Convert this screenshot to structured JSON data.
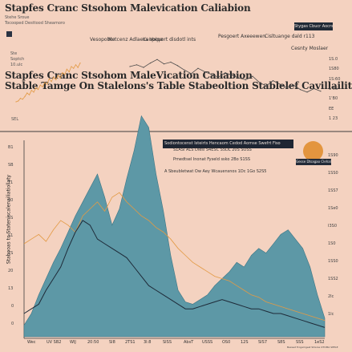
{
  "title": {
    "line1": "Stapfes Cranc Stsohom Malevication Caliabion",
    "line2": "Stapfes Cranc Stsohom MaleVication Caliabion",
    "line3": "Stable Tamge On Stalelons's Table Stabeoltion Stablelef Cavillaility"
  },
  "header": {
    "sub1": "Stehe Sroue",
    "sub2": "Tocooped Desttood Sheamoro",
    "legend_box": "Stygas Cbucr Aocrs",
    "top_labels": [
      "Vesopobte",
      "Netcenz Adlaecs Voiqe",
      "Kaupquort disdotl ints",
      "Pesgoert Axeeewen",
      "Cisltuange dald r113",
      "Cesnty Moslaer"
    ],
    "left_small": [
      "Ste",
      "Soptch",
      "10.ulc"
    ],
    "right_ticks": [
      "1S.0",
      "1S80",
      "1S:60",
      "1 5S",
      "1'B0",
      "EE",
      "1 23"
    ],
    "left_mark": "SEL"
  },
  "annotation": {
    "box": "Sodiontocenst Isteirts Hencaom Cedod Aomse Swefrt Fisoetf",
    "circle_label": "Gesse Dtsagao Clehaluseo",
    "rows": [
      "S1ASI  ALS  Diesl  S4ESC  S5DL 20S SOSS",
      "Pmedtsel  Inonat Fyseld  ssko  2Bo S1SS",
      "A  Sbeubletwat  Ow  Aey  Wcauensnos  1Dc  1Go S2S5"
    ]
  },
  "left_axis": {
    "label": "Stabooas to Stateniscalenailiatiollaty",
    "ticks": [
      "B1",
      "SB",
      "T1",
      "40",
      "5S",
      "S1",
      "1S",
      "20",
      "13",
      "0",
      "0"
    ]
  },
  "right_axis": {
    "ticks": [
      "1S90",
      "1SS0",
      "1SS7",
      "1Se0",
      "I3S0",
      "1S0",
      "1SS0",
      "1SS2",
      "2Ic",
      "1Ic"
    ]
  },
  "x_axis": {
    "ticks": [
      "Wec",
      "UV SB2",
      "WIJ",
      "20:50",
      "Sl8",
      "2TS1",
      "3l:8",
      "SISS",
      "AbsT",
      "USSS",
      "OS0",
      "12S",
      "SIS7",
      "S8S",
      "SSS",
      "1eS2"
    ]
  },
  "footnote": "Beswet Trogamgest Shlsnie OTOMA SEELE",
  "colors": {
    "background": "#f4d2c0",
    "area": "#5d98a6",
    "area_edge": "#3a7585",
    "dark_line": "#1e2a38",
    "orange_line": "#e39a44",
    "grey_line": "#4a4a4a"
  },
  "chart_data": [
    {
      "type": "line",
      "title": "",
      "xlabel": "",
      "ylabel": "",
      "ylim": [
        0,
        100
      ],
      "series": [
        {
          "values": [
            70,
            72,
            69,
            74,
            78,
            73,
            75,
            71,
            66,
            62,
            68,
            64,
            61,
            58,
            63,
            60,
            57,
            55,
            59,
            52,
            48,
            54,
            50,
            46,
            49,
            44,
            41,
            45,
            42
          ]
        },
        {
          "values": [
            30,
            31,
            34,
            33,
            36,
            40,
            38,
            43,
            41,
            46,
            44,
            49,
            47,
            52,
            50,
            56,
            53,
            58,
            55,
            60,
            57,
            63,
            61,
            67,
            64,
            70,
            68,
            72,
            69,
            74
          ]
        }
      ]
    },
    {
      "type": "area",
      "title": "",
      "xlabel": "",
      "ylabel": "Stabooas to Stateniscalenailiatiollaty",
      "ylim": [
        0,
        100
      ],
      "series": [
        {
          "values": [
            5,
            10,
            18,
            25,
            32,
            38,
            45,
            52,
            58,
            64,
            70,
            60,
            48,
            55,
            68,
            80,
            95,
            90,
            70,
            54,
            35,
            20,
            15,
            14,
            16,
            18,
            22,
            25,
            28,
            32,
            30,
            35,
            38,
            36,
            40,
            44,
            46,
            42,
            38,
            30,
            18,
            8
          ]
        },
        {
          "values": [
            40,
            42,
            44,
            41,
            46,
            50,
            48,
            45,
            52,
            55,
            58,
            54,
            60,
            62,
            58,
            55,
            52,
            50,
            47,
            45,
            42,
            38,
            35,
            32,
            30,
            28,
            26,
            25,
            24,
            22,
            20,
            18,
            17,
            15,
            14,
            13,
            12,
            11,
            10,
            9,
            8,
            7
          ]
        },
        {
          "values": [
            10,
            12,
            14,
            20,
            25,
            30,
            38,
            45,
            50,
            48,
            42,
            40,
            38,
            36,
            34,
            30,
            26,
            22,
            20,
            18,
            16,
            14,
            12,
            12,
            13,
            14,
            15,
            16,
            15,
            14,
            13,
            12,
            12,
            11,
            10,
            10,
            9,
            8,
            7,
            6,
            5,
            4
          ]
        }
      ]
    }
  ]
}
